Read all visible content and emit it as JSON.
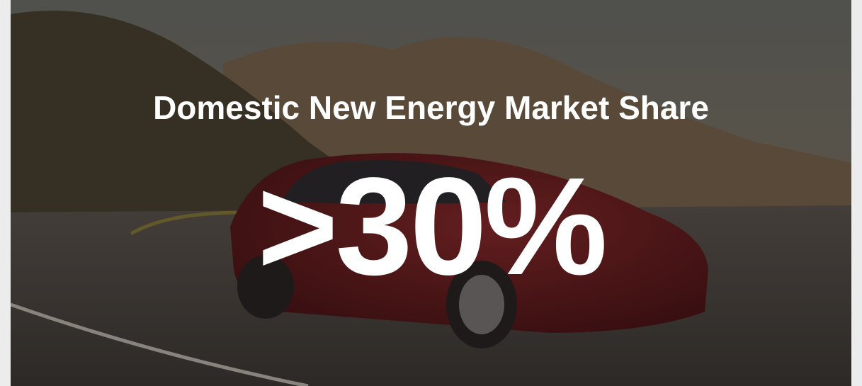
{
  "slide": {
    "title": "Domestic New Energy Market Share",
    "stat": ">30%"
  }
}
